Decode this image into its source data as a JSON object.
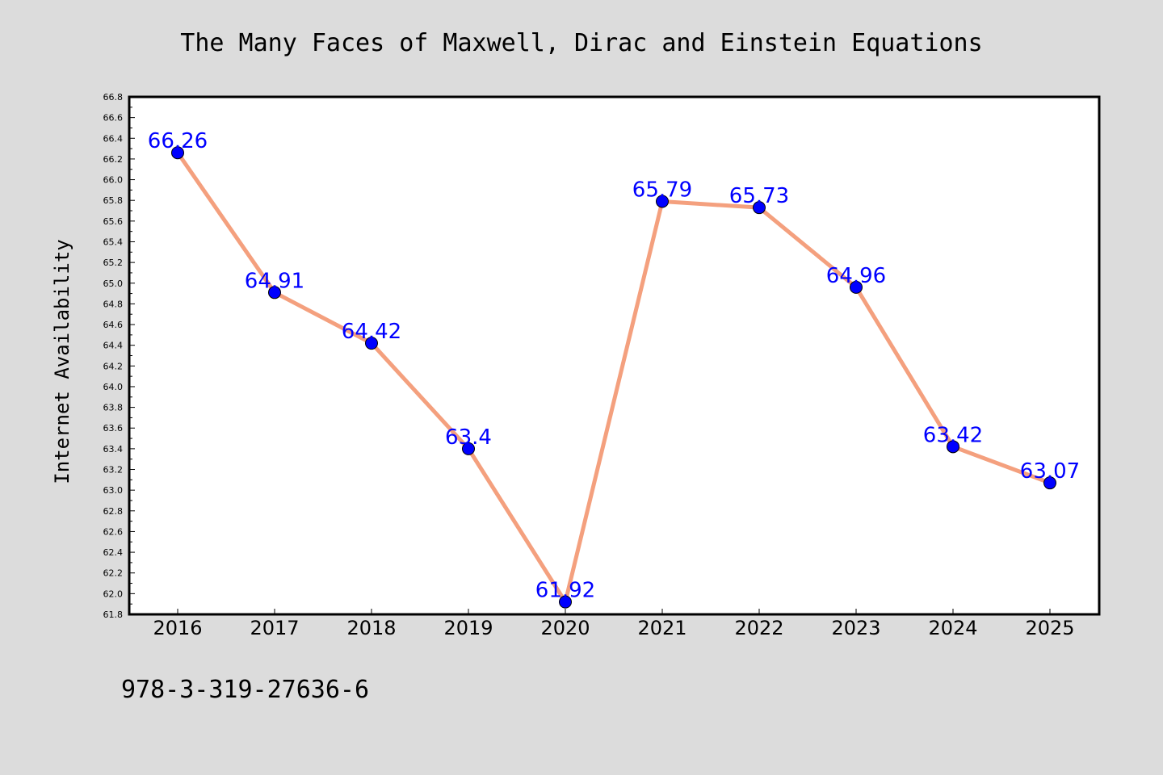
{
  "chart_data": {
    "type": "line",
    "title": "The Many Faces of Maxwell, Dirac and Einstein Equations",
    "xlabel": "",
    "ylabel": "Internet Availability",
    "categories": [
      "2016",
      "2017",
      "2018",
      "2019",
      "2020",
      "2021",
      "2022",
      "2023",
      "2024",
      "2025"
    ],
    "values": [
      66.26,
      64.91,
      64.42,
      63.4,
      61.92,
      65.79,
      65.73,
      64.96,
      63.42,
      63.07
    ],
    "data_labels": [
      "66.26",
      "64.91",
      "64.42",
      "63.4",
      "61.92",
      "65.79",
      "65.73",
      "64.96",
      "63.42",
      "63.07"
    ],
    "ylim": [
      61.8,
      66.8
    ],
    "yticks": [
      "61.8",
      "62.0",
      "62.2",
      "62.4",
      "62.6",
      "62.8",
      "63.0",
      "63.2",
      "63.4",
      "63.6",
      "63.8",
      "64.0",
      "64.2",
      "64.4",
      "64.6",
      "64.8",
      "65.0",
      "65.2",
      "65.4",
      "65.6",
      "65.8",
      "66.0",
      "66.2",
      "66.4",
      "66.6",
      "66.8"
    ],
    "grid": false,
    "colors": {
      "line": "#f4a07e",
      "marker": "#0000ff",
      "data_label": "#0000ff",
      "background": "#dcdcdc",
      "plot_area": "#ffffff"
    }
  },
  "footnote": "978-3-319-27636-6"
}
